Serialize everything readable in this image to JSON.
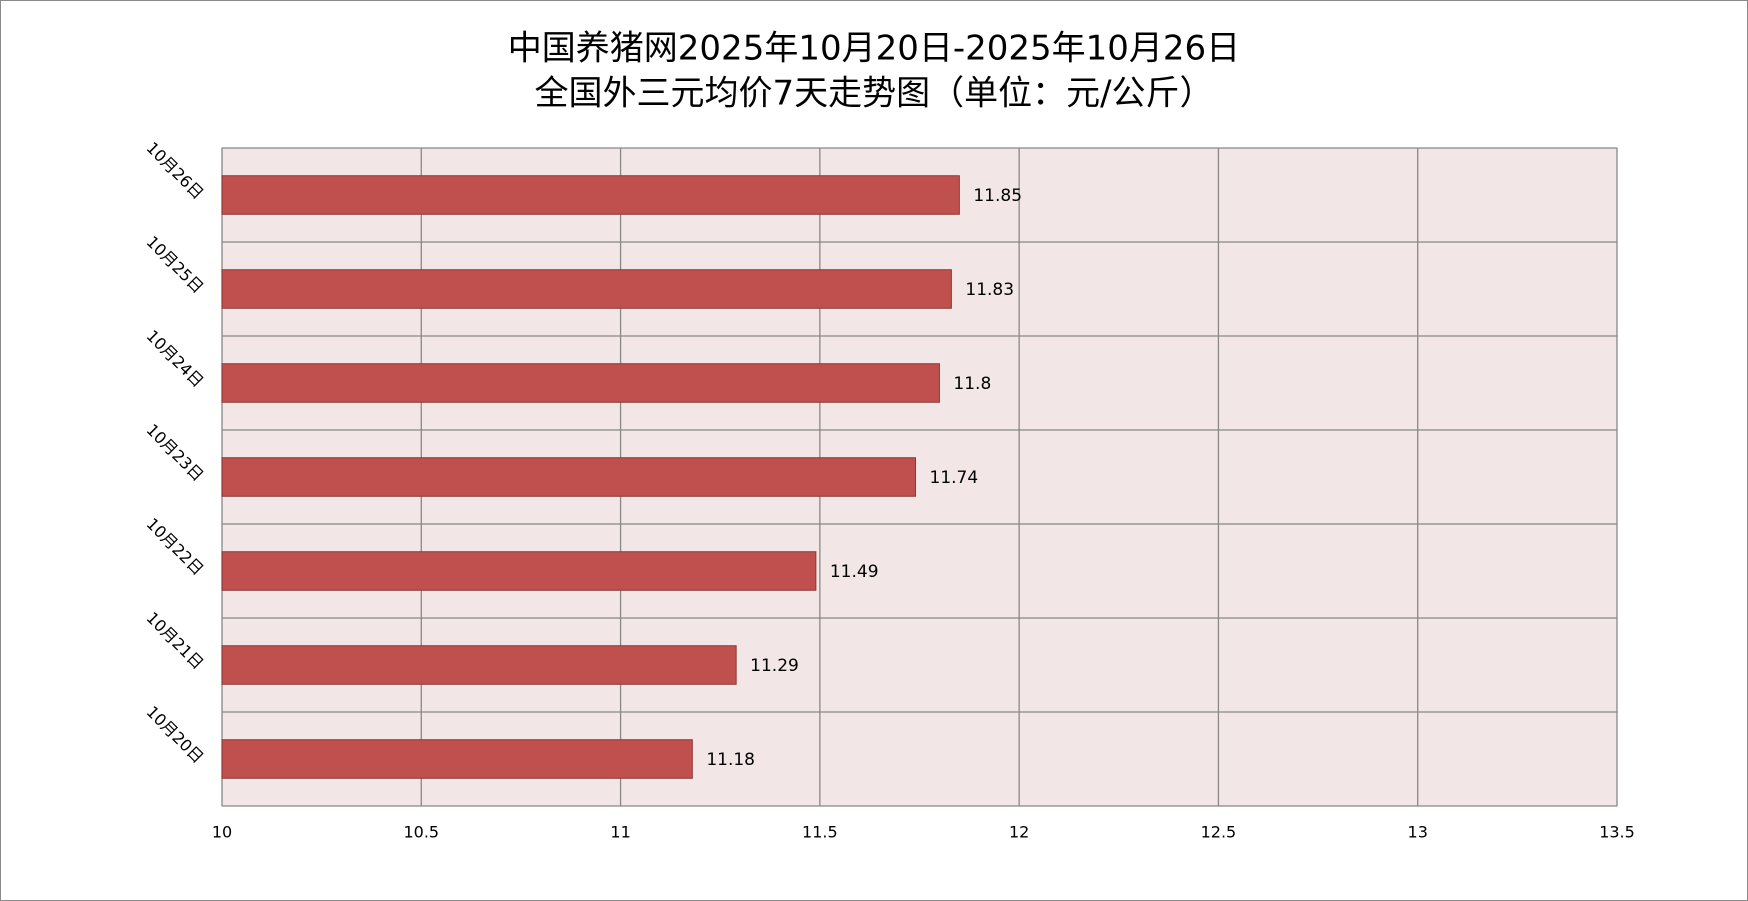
{
  "chart_data": {
    "type": "bar",
    "orientation": "horizontal",
    "title": "中国养猪网2025年10月20日-2025年10月26日",
    "subtitle": "全国外三元均价7天走势图（单位：元/公斤）",
    "categories": [
      "10月20日",
      "10月21日",
      "10月22日",
      "10月23日",
      "10月24日",
      "10月25日",
      "10月26日"
    ],
    "values": [
      11.18,
      11.29,
      11.49,
      11.74,
      11.8,
      11.83,
      11.85
    ],
    "color": "#c0504d",
    "xlim": [
      10,
      13.5
    ],
    "xticks": [
      10,
      10.5,
      11,
      11.5,
      12,
      12.5,
      13,
      13.5
    ],
    "grid": true
  }
}
